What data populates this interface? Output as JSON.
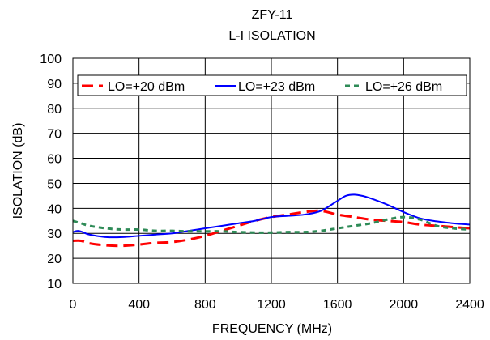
{
  "chart_data": {
    "type": "line",
    "title": "ZFY-11",
    "subtitle": "L-I ISOLATION",
    "xlabel": "FREQUENCY (MHz)",
    "ylabel": "ISOLATION (dB)",
    "xlim": [
      0,
      2400
    ],
    "ylim": [
      10,
      100
    ],
    "xticks": [
      0,
      400,
      800,
      1200,
      1600,
      2000,
      2400
    ],
    "yticks": [
      10,
      20,
      30,
      40,
      50,
      60,
      70,
      80,
      90,
      100
    ],
    "grid": true,
    "legend_position": "top",
    "series": [
      {
        "name": "LO=+20 dBm",
        "color": "#ff0000",
        "style": "dashed",
        "x": [
          0,
          50,
          100,
          200,
          300,
          400,
          500,
          600,
          700,
          800,
          900,
          1000,
          1100,
          1200,
          1300,
          1400,
          1500,
          1600,
          1700,
          1800,
          1900,
          2000,
          2100,
          2200,
          2300,
          2400
        ],
        "y": [
          27,
          27,
          26,
          25.2,
          25,
          25.5,
          26.2,
          26.5,
          27.5,
          29,
          31,
          33,
          35,
          36.5,
          37.5,
          38.5,
          39,
          37.5,
          36.5,
          35.5,
          35,
          34.5,
          33.5,
          33,
          32.5,
          32
        ]
      },
      {
        "name": "LO=+23 dBm",
        "color": "#0000ff",
        "style": "solid",
        "x": [
          0,
          30,
          60,
          100,
          200,
          300,
          400,
          500,
          600,
          700,
          800,
          900,
          1000,
          1100,
          1200,
          1300,
          1400,
          1500,
          1600,
          1650,
          1700,
          1750,
          1800,
          1900,
          2000,
          2100,
          2200,
          2300,
          2400
        ],
        "y": [
          30.5,
          31,
          30.5,
          29.5,
          28.5,
          28.5,
          29,
          29.5,
          30,
          31,
          32,
          33,
          34,
          35,
          36.5,
          37,
          37.5,
          39,
          43,
          45,
          45.5,
          45,
          44,
          41.5,
          38.5,
          36,
          34.8,
          34,
          33.5
        ]
      },
      {
        "name": "LO=+26 dBm",
        "color": "#2e8b57",
        "style": "dotted",
        "x": [
          0,
          50,
          100,
          200,
          300,
          400,
          500,
          600,
          700,
          800,
          900,
          1000,
          1100,
          1200,
          1300,
          1400,
          1500,
          1600,
          1700,
          1800,
          1900,
          2000,
          2100,
          2200,
          2300,
          2400
        ],
        "y": [
          35,
          34,
          33,
          32,
          31.5,
          31.5,
          31,
          31,
          30.8,
          30.8,
          30.8,
          30.5,
          30.3,
          30.3,
          30.5,
          30.5,
          31,
          32,
          33,
          34,
          35.5,
          36.5,
          35.5,
          33,
          32,
          31.5
        ]
      }
    ]
  }
}
